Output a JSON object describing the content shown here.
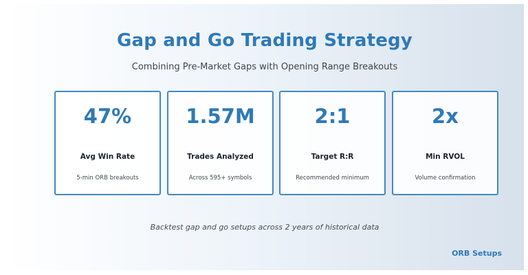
{
  "header": {
    "title": "Gap and Go Trading Strategy",
    "subtitle": "Combining Pre-Market Gaps with Opening Range Breakouts"
  },
  "cards": [
    {
      "value": "47%",
      "label": "Avg Win Rate",
      "desc": "5-min ORB breakouts"
    },
    {
      "value": "1.57M",
      "label": "Trades Analyzed",
      "desc": "Across 595+ symbols"
    },
    {
      "value": "2:1",
      "label": "Target R:R",
      "desc": "Recommended minimum"
    },
    {
      "value": "2x",
      "label": "Min RVOL",
      "desc": "Volume confirmation"
    }
  ],
  "footer": {
    "note": "Backtest gap and go setups across 2 years of historical data",
    "brand": "ORB Setups"
  },
  "colors": {
    "accent": "#2f7ab6",
    "card_border": "#4289bd"
  }
}
